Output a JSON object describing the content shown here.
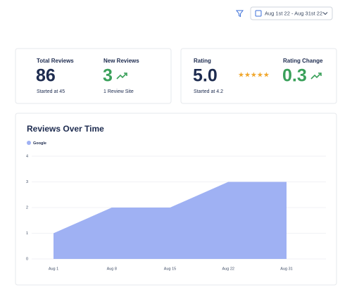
{
  "toolbar": {
    "date_range": "Aug 1st 22 - Aug 31st 22"
  },
  "stats": [
    {
      "label": "Total Reviews",
      "value": "86",
      "note": "Started at 45"
    },
    {
      "label": "New Reviews",
      "value": "3",
      "note": "1 Review Site"
    },
    {
      "label": "Rating",
      "value": "5.0",
      "note": "Started at 4.2"
    },
    {
      "label": "Rating Change",
      "value": "0.3"
    }
  ],
  "chart_data": {
    "type": "area",
    "title": "Reviews Over Time",
    "categories": [
      "Aug 1",
      "Aug 8",
      "Aug 15",
      "Aug 22",
      "Aug 31"
    ],
    "series": [
      {
        "name": "Google",
        "color": "#9fb1f3",
        "values": [
          1,
          2,
          2,
          3,
          3
        ]
      }
    ],
    "ylim": [
      0,
      4
    ],
    "yticks": [
      0,
      1,
      2,
      3,
      4
    ],
    "grid": true
  }
}
